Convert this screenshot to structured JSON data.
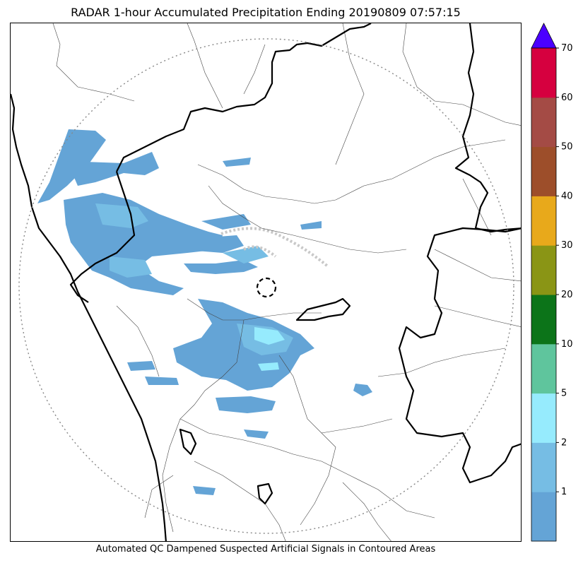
{
  "title": "RADAR 1-hour Accumulated Precipitation Ending 20190809 07:57:15",
  "footer": "Automated QC Dampened Suspected Artificial Signals in Contoured Areas",
  "colorbar": {
    "ticks": [
      "1",
      "2",
      "5",
      "10",
      "20",
      "30",
      "40",
      "50",
      "60",
      "70"
    ],
    "extend_color": "#4b00ff",
    "colors": [
      "#64a4d6",
      "#76bde4",
      "#96ebfd",
      "#5fc59d",
      "#0c7419",
      "#8a9515",
      "#e8a91b",
      "#9d4e2a",
      "#a44b45",
      "#d6003f"
    ]
  },
  "map": {
    "range_ring": "dotted",
    "radar_site_marker": "dashed-circle"
  }
}
